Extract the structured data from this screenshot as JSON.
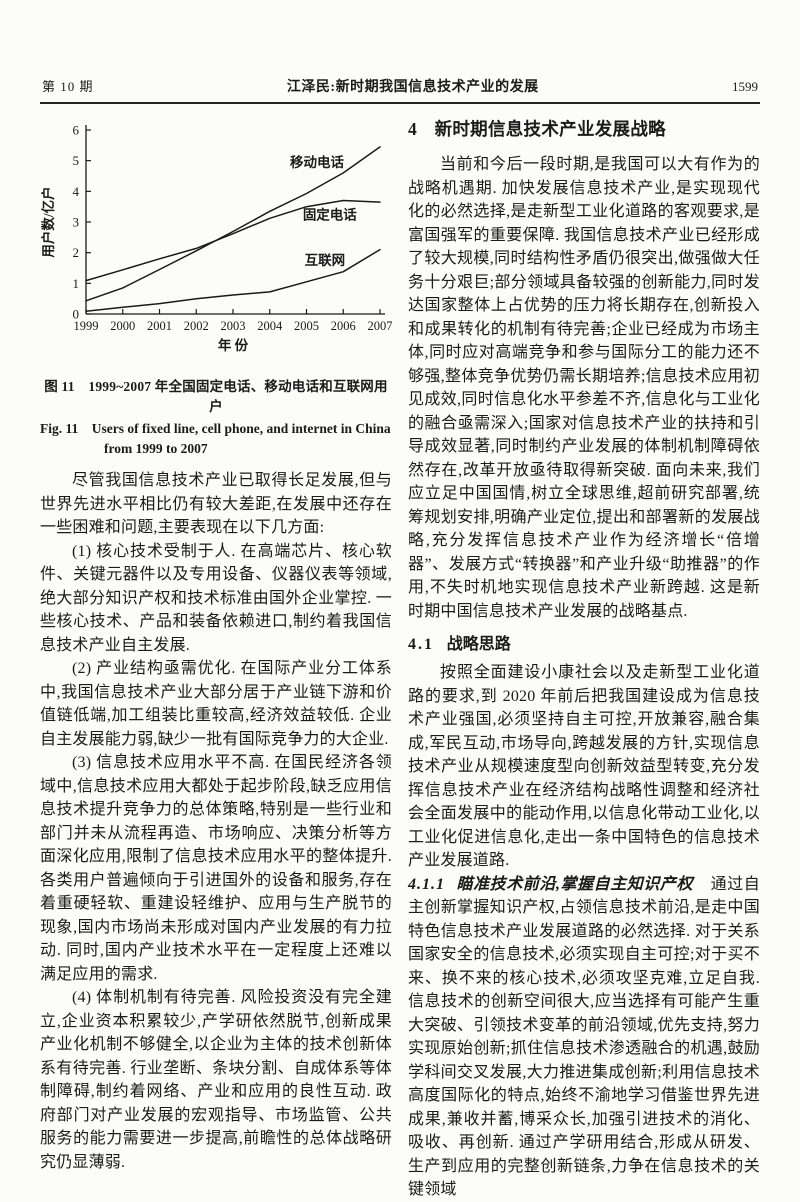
{
  "header": {
    "issue": "第 10 期",
    "running_title": "江泽民:新时期我国信息技术产业的发展",
    "page_number": "1599"
  },
  "figure": {
    "caption_cn": "图 11　1999~2007 年全国固定电话、移动电话和互联网用户",
    "caption_en": "Fig. 11　Users of fixed line, cell phone, and internet in China from 1999 to 2007"
  },
  "chart_data": {
    "type": "line",
    "title": "",
    "xlabel": "年 份",
    "ylabel": "用户数/亿户",
    "x": [
      1999,
      2000,
      2001,
      2002,
      2003,
      2004,
      2005,
      2006,
      2007
    ],
    "xlim": [
      1999,
      2007
    ],
    "ylim": [
      0,
      6
    ],
    "yticks": [
      0,
      1,
      2,
      3,
      4,
      5,
      6
    ],
    "grid": false,
    "legend_position": "inline-labels",
    "line_color": "#1a1a1a",
    "series": [
      {
        "name": "移动电话",
        "values": [
          0.43,
          0.85,
          1.45,
          2.06,
          2.69,
          3.35,
          3.93,
          4.6,
          5.45
        ],
        "label_anchor": [
          2004.55,
          4.8
        ]
      },
      {
        "name": "固定电话",
        "values": [
          1.09,
          1.44,
          1.8,
          2.14,
          2.62,
          3.12,
          3.5,
          3.7,
          3.65
        ],
        "label_anchor": [
          2004.9,
          3.08
        ]
      },
      {
        "name": "互联网",
        "values": [
          0.09,
          0.22,
          0.34,
          0.5,
          0.62,
          0.72,
          1.05,
          1.38,
          2.1
        ],
        "label_anchor": [
          2004.95,
          1.6
        ]
      }
    ]
  },
  "left": {
    "paragraphs": [
      "尽管我国信息技术产业已取得长足发展,但与世界先进水平相比仍有较大差距,在发展中还存在一些困难和问题,主要表现在以下几方面:",
      "(1) 核心技术受制于人. 在高端芯片、核心软件、关键元器件以及专用设备、仪器仪表等领域,绝大部分知识产权和技术标准由国外企业掌控. 一些核心技术、产品和装备依赖进口,制约着我国信息技术产业自主发展.",
      "(2) 产业结构亟需优化. 在国际产业分工体系中,我国信息技术产业大部分居于产业链下游和价值链低端,加工组装比重较高,经济效益较低. 企业自主发展能力弱,缺少一批有国际竞争力的大企业.",
      "(3) 信息技术应用水平不高. 在国民经济各领域中,信息技术应用大都处于起步阶段,缺乏应用信息技术提升竞争力的总体策略,特别是一些行业和部门并未从流程再造、市场响应、决策分析等方面深化应用,限制了信息技术应用水平的整体提升. 各类用户普遍倾向于引进国外的设备和服务,存在着重硬轻软、重建设轻维护、应用与生产脱节的现象,国内市场尚未形成对国内产业发展的有力拉动. 同时,国内产业技术水平在一定程度上还难以满足应用的需求.",
      "(4) 体制机制有待完善. 风险投资没有完全建立,企业资本积累较少,产学研依然脱节,创新成果产业化机制不够健全,以企业为主体的技术创新体系有待完善. 行业垄断、条块分割、自成体系等体制障碍,制约着网络、产业和应用的良性互动. 政府部门对产业发展的宏观指导、市场监管、公共服务的能力需要进一步提高,前瞻性的总体战略研究仍显薄弱."
    ]
  },
  "right": {
    "section4": {
      "number": "4",
      "title": "新时期信息技术产业发展战略"
    },
    "para_section4": "当前和今后一段时期,是我国可以大有作为的战略机遇期. 加快发展信息技术产业,是实现现代化的必然选择,是走新型工业化道路的客观要求,是富国强军的重要保障. 我国信息技术产业已经形成了较大规模,同时结构性矛盾仍很突出,做强做大任务十分艰巨;部分领域具备较强的创新能力,同时发达国家整体上占优势的压力将长期存在,创新投入和成果转化的机制有待完善;企业已经成为市场主体,同时应对高端竞争和参与国际分工的能力还不够强,整体竞争优势仍需长期培养;信息技术应用初见成效,同时信息化水平参差不齐,信息化与工业化的融合亟需深入;国家对信息技术产业的扶持和引导成效显著,同时制约产业发展的体制机制障碍依然存在,改革开放亟待取得新突破. 面向未来,我们应立足中国国情,树立全球思维,超前研究部署,统筹规划安排,明确产业定位,提出和部署新的发展战略,充分发挥信息技术产业作为经济增长“倍增器”、发展方式“转换器”和产业升级“助推器”的作用,不失时机地实现信息技术产业新跨越. 这是新时期中国信息技术产业发展的战略基点.",
    "section41": {
      "number": "4.1",
      "title": "战略思路"
    },
    "para_section41": "按照全面建设小康社会以及走新型工业化道路的要求,到 2020 年前后把我国建设成为信息技术产业强国,必须坚持自主可控,开放兼容,融合集成,军民互动,市场导向,跨越发展的方针,实现信息技术产业从规模速度型向创新效益型转变,充分发挥信息技术产业在经济结构战略性调整和经济社会全面发展中的能动作用,以信息化带动工业化,以工业化促进信息化,走出一条中国特色的信息技术产业发展道路.",
    "section411": {
      "number": "4.1.1",
      "title": "瞄准技术前沿,掌握自主知识产权",
      "text": "通过自主创新掌握知识产权,占领信息技术前沿,是走中国特色信息技术产业发展道路的必然选择. 对于关系国家安全的信息技术,必须实现自主可控;对于买不来、换不来的核心技术,必须攻坚克难,立足自我. 信息技术的创新空间很大,应当选择有可能产生重大突破、引领技术变革的前沿领域,优先支持,努力实现原始创新;抓住信息技术渗透融合的机遇,鼓励学科间交叉发展,大力推进集成创新;利用信息技术高度国际化的特点,始终不渝地学习借鉴世界先进成果,兼收并蓄,博采众长,加强引进技术的消化、吸收、再创新. 通过产学研用结合,形成从研发、生产到应用的完整创新链条,力争在信息技术的关键领域"
    }
  }
}
